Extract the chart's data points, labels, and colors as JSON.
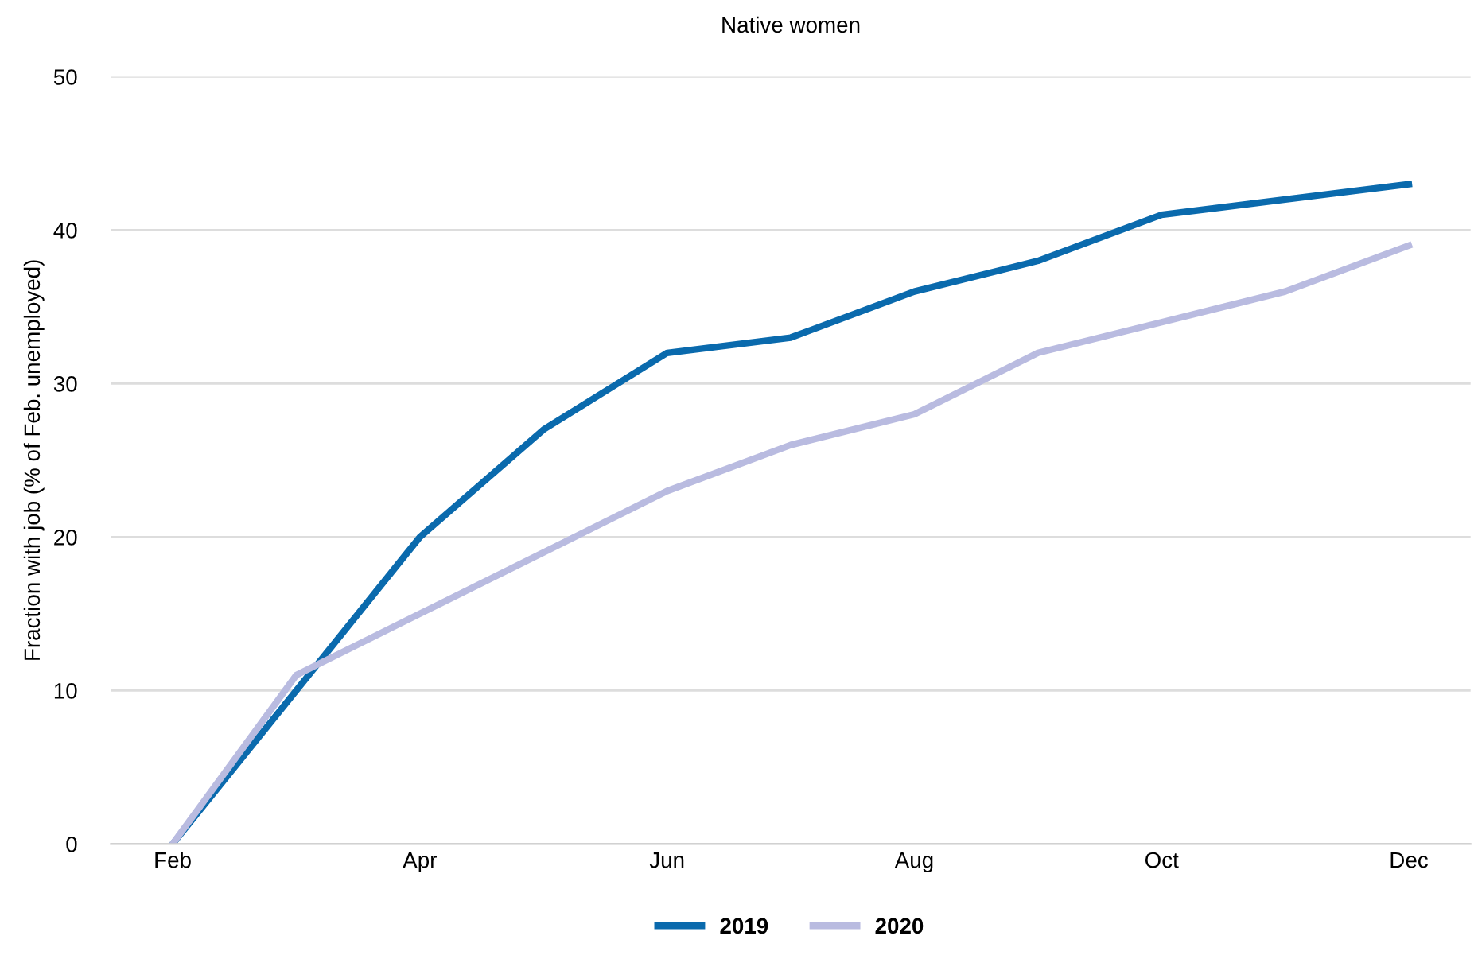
{
  "chart_data": {
    "type": "line",
    "title": "Native women",
    "ylabel": "Fraction with job (% of Feb. unemployed)",
    "categories": [
      "Feb",
      null,
      "Apr",
      null,
      "Jun",
      null,
      "Aug",
      null,
      "Oct",
      null,
      "Dec"
    ],
    "series": [
      {
        "name": "2019",
        "color": "#0a6aad",
        "values": [
          0,
          10,
          20,
          27,
          32,
          33,
          36,
          38,
          41,
          42,
          43
        ]
      },
      {
        "name": "2020",
        "color": "#b9bbe0",
        "values": [
          0,
          11,
          15,
          19,
          23,
          26,
          28,
          32,
          34,
          36,
          39
        ]
      }
    ],
    "ylim": [
      0,
      50
    ],
    "yticks": [
      0,
      10,
      20,
      30,
      40,
      50
    ],
    "grid": "y",
    "legend": "bottom",
    "line_style": "solid",
    "marker": "none"
  }
}
